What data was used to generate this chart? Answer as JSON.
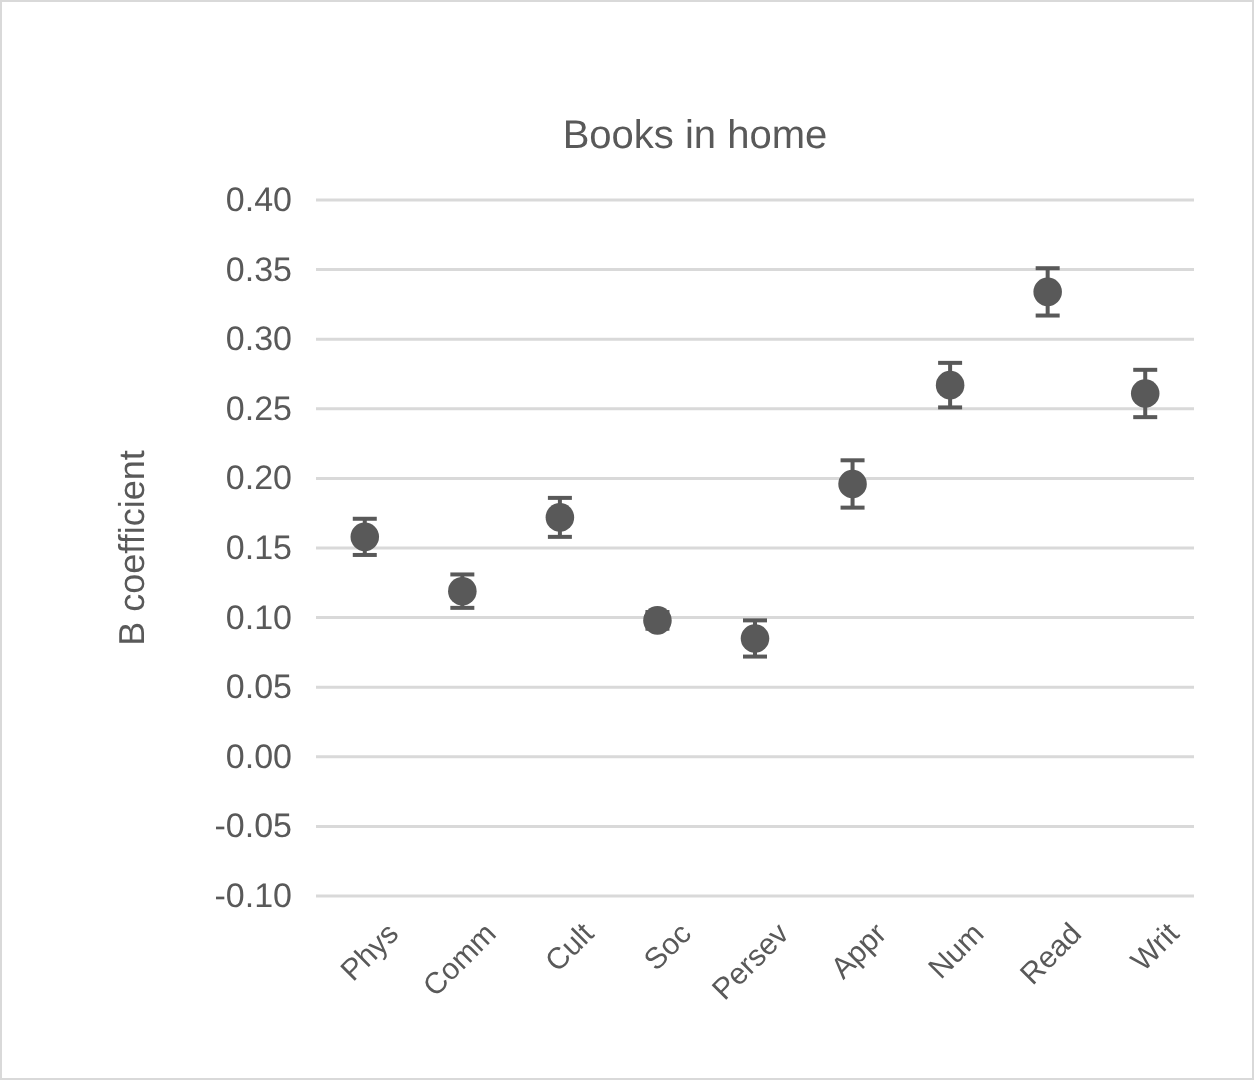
{
  "chart_data": {
    "type": "scatter",
    "title": "Books in home",
    "ylabel": "B coefficient",
    "categories": [
      "Phys",
      "Comm",
      "Cult",
      "Soc",
      "Persev",
      "Appr",
      "Num",
      "Read",
      "Writ"
    ],
    "values": [
      0.158,
      0.119,
      0.172,
      0.098,
      0.085,
      0.196,
      0.267,
      0.334,
      0.261
    ],
    "errors": [
      0.013,
      0.012,
      0.014,
      0.006,
      0.013,
      0.017,
      0.016,
      0.017,
      0.017
    ],
    "color": "#595959",
    "marker": "circle",
    "grid": "y",
    "ylim": [
      -0.1,
      0.4
    ],
    "yticks": [
      {
        "value": -0.1,
        "label": "-0.10"
      },
      {
        "value": -0.05,
        "label": "-0.05"
      },
      {
        "value": 0,
        "label": "0.00"
      },
      {
        "value": 0.05,
        "label": "0.05"
      },
      {
        "value": 0.1,
        "label": "0.10"
      },
      {
        "value": 0.15,
        "label": "0.15"
      },
      {
        "value": 0.2,
        "label": "0.20"
      },
      {
        "value": 0.25,
        "label": "0.25"
      },
      {
        "value": 0.3,
        "label": "0.30"
      },
      {
        "value": 0.35,
        "label": "0.35"
      },
      {
        "value": 0.4,
        "label": "0.40"
      }
    ]
  }
}
